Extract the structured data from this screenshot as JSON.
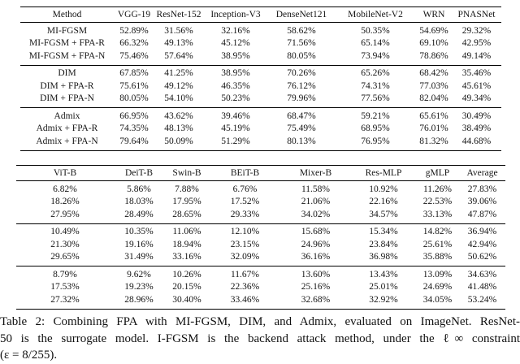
{
  "tables": [
    {
      "name": "cnn-models-results",
      "headers": [
        "Method",
        "VGG-19",
        "ResNet-152",
        "Inception-V3",
        "DenseNet121",
        "MobileNet-V2",
        "WRN",
        "PNASNet"
      ],
      "bold_headers": [],
      "groups": [
        {
          "rows": [
            {
              "label": "MI-FGSM",
              "bold": false,
              "values": [
                "52.89%",
                "31.56%",
                "32.16%",
                "58.62%",
                "50.35%",
                "54.69%",
                "29.32%"
              ]
            },
            {
              "label": "MI-FGSM + FPA-R",
              "bold": false,
              "values": [
                "66.32%",
                "49.13%",
                "45.12%",
                "71.56%",
                "65.14%",
                "69.10%",
                "42.95%"
              ]
            },
            {
              "label": "MI-FGSM + FPA-N",
              "bold": true,
              "values": [
                "75.46%",
                "57.64%",
                "38.95%",
                "80.05%",
                "73.94%",
                "78.86%",
                "49.14%"
              ]
            }
          ]
        },
        {
          "rows": [
            {
              "label": "DIM",
              "bold": false,
              "values": [
                "67.85%",
                "41.25%",
                "38.95%",
                "70.26%",
                "65.26%",
                "68.42%",
                "35.46%"
              ]
            },
            {
              "label": "DIM + FPA-R",
              "bold": false,
              "values": [
                "75.61%",
                "49.12%",
                "46.35%",
                "76.12%",
                "74.31%",
                "77.03%",
                "45.61%"
              ]
            },
            {
              "label": "DIM + FPA-N",
              "bold": true,
              "values": [
                "80.05%",
                "54.10%",
                "50.23%",
                "79.96%",
                "77.56%",
                "82.04%",
                "49.34%"
              ]
            }
          ]
        },
        {
          "rows": [
            {
              "label": "Admix",
              "bold": false,
              "values": [
                "66.95%",
                "43.62%",
                "39.46%",
                "68.47%",
                "59.21%",
                "65.61%",
                "30.49%"
              ]
            },
            {
              "label": "Admix + FPA-R",
              "bold": false,
              "values": [
                "74.35%",
                "48.13%",
                "45.19%",
                "75.49%",
                "68.95%",
                "76.01%",
                "38.49%"
              ]
            },
            {
              "label": "Admix + FPA-N",
              "bold": true,
              "values": [
                "79.64%",
                "50.09%",
                "51.29%",
                "80.13%",
                "76.95%",
                "81.32%",
                "44.68%"
              ]
            }
          ]
        }
      ]
    },
    {
      "name": "transformer-mlp-models-results",
      "headers": [
        "ViT-B",
        "DeiT-B",
        "Swin-B",
        "BEiT-B",
        "Mixer-B",
        "Res-MLP",
        "gMLP",
        "Average"
      ],
      "bold_headers": [
        "Average"
      ],
      "groups": [
        {
          "rows": [
            {
              "bold": false,
              "values": [
                "6.82%",
                "5.86%",
                "7.88%",
                "6.76%",
                "11.58%",
                "10.92%",
                "11.26%",
                "27.83%"
              ]
            },
            {
              "bold": false,
              "values": [
                "18.26%",
                "18.03%",
                "17.95%",
                "17.52%",
                "21.06%",
                "22.16%",
                "22.53%",
                "39.06%"
              ]
            },
            {
              "bold": true,
              "values": [
                "27.95%",
                "28.49%",
                "28.65%",
                "29.33%",
                "34.02%",
                "34.57%",
                "33.13%",
                "47.87%"
              ]
            }
          ]
        },
        {
          "rows": [
            {
              "bold": false,
              "values": [
                "10.49%",
                "10.35%",
                "11.06%",
                "12.10%",
                "15.68%",
                "15.34%",
                "14.82%",
                "36.94%"
              ]
            },
            {
              "bold": false,
              "values": [
                "21.30%",
                "19.16%",
                "18.94%",
                "23.15%",
                "24.96%",
                "23.84%",
                "25.61%",
                "42.94%"
              ]
            },
            {
              "bold": true,
              "values": [
                "29.65%",
                "31.49%",
                "33.16%",
                "32.09%",
                "36.16%",
                "36.98%",
                "35.88%",
                "50.62%"
              ]
            }
          ]
        },
        {
          "rows": [
            {
              "bold": false,
              "values": [
                "8.79%",
                "9.62%",
                "10.26%",
                "11.67%",
                "13.60%",
                "13.43%",
                "13.09%",
                "34.63%"
              ]
            },
            {
              "bold": false,
              "values": [
                "17.53%",
                "19.23%",
                "20.15%",
                "22.36%",
                "25.16%",
                "25.01%",
                "24.69%",
                "41.48%"
              ]
            },
            {
              "bold": true,
              "values": [
                "27.32%",
                "28.96%",
                "30.40%",
                "33.46%",
                "32.68%",
                "32.92%",
                "34.05%",
                "53.24%"
              ]
            }
          ]
        }
      ]
    }
  ],
  "caption": {
    "lines": [
      "Table 2: Combining FPA with MI-FGSM, DIM, and Admix, evaluated on ImageNet. ResNet-",
      "50 is the surrogate model. I-FGSM is the backend attack method, under the ℓ∞ constraint",
      "(ε = 8/255)."
    ],
    "full_text": "Table 2: Combining FPA with MI-FGSM, DIM, and Admix, evaluated on ImageNet. ResNet-50 is the surrogate model. I-FGSM is the backend attack method, under the ℓ∞ constraint (ε = 8/255)."
  }
}
